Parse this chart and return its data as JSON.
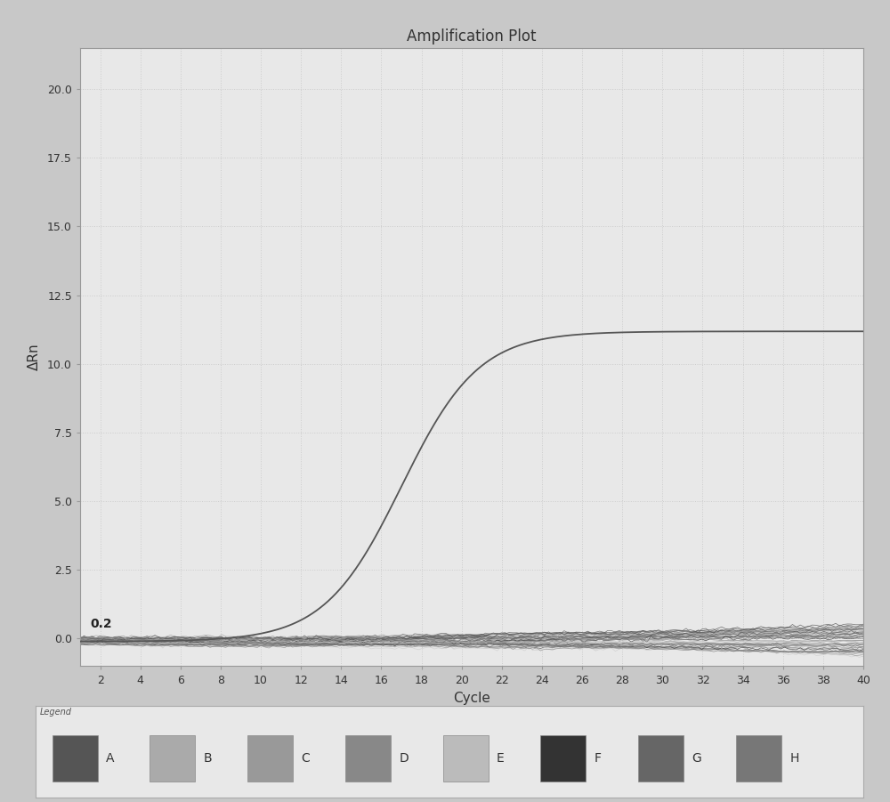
{
  "title": "Amplification Plot",
  "xlabel": "Cycle",
  "ylabel": "ΔRn",
  "xlim": [
    1,
    40
  ],
  "ylim": [
    -1.0,
    21.5
  ],
  "yticks": [
    0.0,
    2.5,
    5.0,
    7.5,
    10.0,
    12.5,
    15.0,
    17.5,
    20.0
  ],
  "xticks": [
    2,
    4,
    6,
    8,
    10,
    12,
    14,
    16,
    18,
    20,
    22,
    24,
    26,
    28,
    30,
    32,
    34,
    36,
    38,
    40
  ],
  "threshold_label": "0.2",
  "threshold_y": 0.2,
  "outer_bg": "#c8c8c8",
  "plot_bg": "#e8e8e8",
  "legend_bg": "#e8e8e8",
  "legend_labels": [
    "A",
    "B",
    "C",
    "D",
    "E",
    "F",
    "G",
    "H"
  ],
  "legend_colors": [
    "#555555",
    "#aaaaaa",
    "#999999",
    "#888888",
    "#bbbbbb",
    "#333333",
    "#666666",
    "#777777"
  ],
  "sigmoid_color": "#555555",
  "title_fontsize": 12,
  "axis_fontsize": 11,
  "tick_fontsize": 9,
  "grid_color": "#cccccc",
  "sigmoid_L": 11.3,
  "sigmoid_x0": 17.0,
  "sigmoid_k": 0.52,
  "sigmoid_b": -0.12,
  "n_flat_lines": 48,
  "flat_seed": 42
}
